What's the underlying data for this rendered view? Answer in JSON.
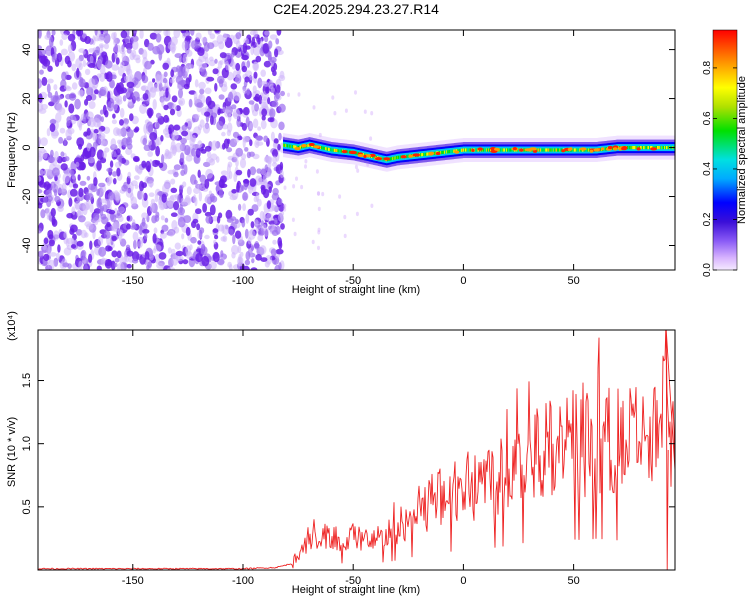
{
  "chart_data": [
    {
      "type": "heatmap",
      "title": "C2E4.2025.294.23.27.R14",
      "xlabel": "Height of straight line (km)",
      "ylabel": "Frequency (Hz)",
      "xlim": [
        -193,
        96
      ],
      "ylim": [
        -50,
        48
      ],
      "xticks": [
        -150,
        -100,
        -50,
        0,
        50
      ],
      "yticks": [
        -40,
        -20,
        0,
        20,
        40
      ],
      "noise_region_x": [
        -193,
        -82
      ],
      "signal_ridge": {
        "x": [
          -82,
          -75,
          -70,
          -60,
          -50,
          -45,
          -40,
          -35,
          -30,
          -20,
          -10,
          0,
          10,
          20,
          30,
          40,
          50,
          60,
          70,
          80,
          90,
          96
        ],
        "freq": [
          1,
          0,
          1,
          -1,
          -2,
          -3,
          -4,
          -5,
          -4,
          -3,
          -2,
          -1,
          -1,
          -1,
          -1,
          -1,
          -1,
          -1,
          0,
          0,
          0,
          0
        ]
      },
      "colorbar": {
        "label": "Normalized spectral amplitude",
        "range": [
          0.0,
          0.95
        ],
        "ticks": [
          "0.0",
          "0.2",
          "0.4",
          "0.6",
          "0.8"
        ]
      },
      "grid": false,
      "colors": {
        "noise": "#7a3fe0",
        "colormap": [
          "#f5eaff",
          "#d8b4fe",
          "#8b5cf6",
          "#3b0fd8",
          "#0000ff",
          "#00aaff",
          "#00e0e0",
          "#00e000",
          "#b0e000",
          "#ffff00",
          "#ff9900",
          "#ff0000"
        ]
      }
    },
    {
      "type": "line",
      "xlabel": "Height of straight line (km)",
      "ylabel": "SNR (10 * v/v)",
      "y_multiplier": "(x10⁴)",
      "xlim": [
        -193,
        96
      ],
      "ylim": [
        0,
        1.9
      ],
      "xticks": [
        -150,
        -100,
        -50,
        0,
        50
      ],
      "yticks": [
        "0.5",
        "1.0",
        "1.5"
      ],
      "series": [
        {
          "color": "#ee2222",
          "x": [
            -193,
            -180,
            -160,
            -140,
            -120,
            -100,
            -85,
            -78,
            -75,
            -72,
            -70,
            -65,
            -60,
            -55,
            -50,
            -45,
            -40,
            -35,
            -30,
            -25,
            -20,
            -15,
            -10,
            -5,
            0,
            5,
            10,
            15,
            20,
            25,
            30,
            35,
            40,
            45,
            50,
            55,
            60,
            65,
            70,
            75,
            80,
            85,
            88,
            90,
            92,
            94,
            96
          ],
          "y": [
            0.01,
            0.01,
            0.01,
            0.01,
            0.01,
            0.01,
            0.02,
            0.05,
            0.12,
            0.18,
            0.2,
            0.24,
            0.25,
            0.22,
            0.26,
            0.22,
            0.24,
            0.26,
            0.32,
            0.4,
            0.45,
            0.52,
            0.55,
            0.6,
            0.62,
            0.65,
            0.7,
            0.72,
            0.78,
            0.85,
            0.88,
            0.92,
            0.95,
            0.9,
            0.98,
            0.95,
            1.0,
            0.98,
            0.95,
            1.0,
            0.98,
            0.95,
            1.02,
            0.95,
            1.9,
            0.95,
            1.0
          ]
        }
      ]
    }
  ]
}
